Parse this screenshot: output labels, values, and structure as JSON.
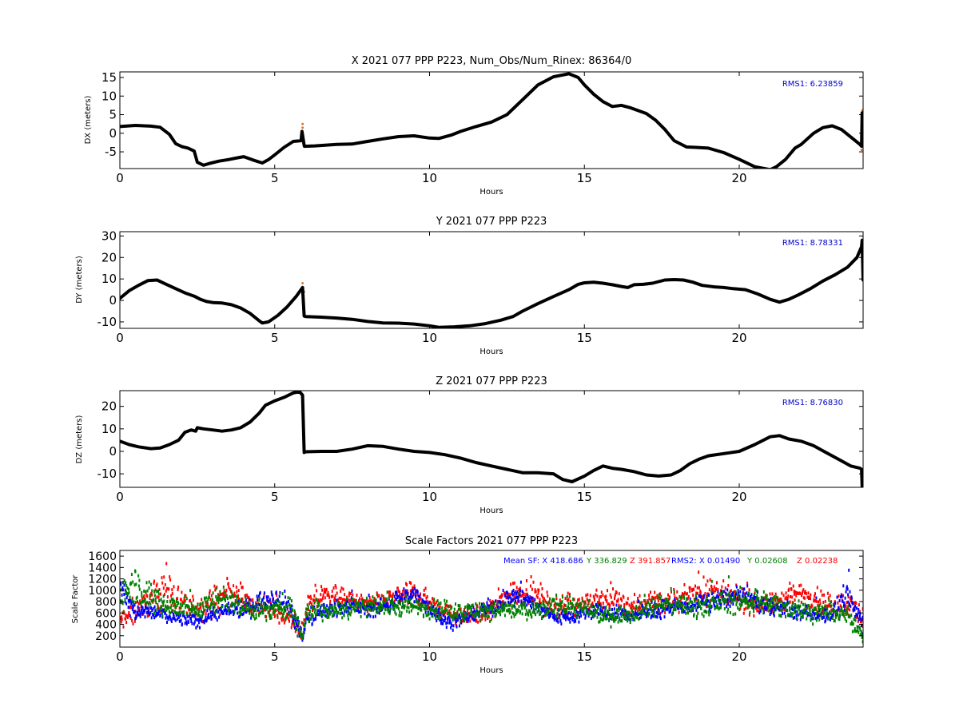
{
  "chart_data": [
    {
      "type": "line",
      "title": "X 2021 077 PPP  P223, Num_Obs/Num_Rinex: 86364/0",
      "xlabel": "Hours",
      "ylabel": "DX (meters)",
      "xlim": [
        0,
        24
      ],
      "ylim": [
        -9.5,
        16.5
      ],
      "xticks": [
        0,
        5,
        10,
        15,
        20
      ],
      "yticks": [
        -5,
        0,
        5,
        10,
        15
      ],
      "annotation": "RMS1:  6.23859",
      "annotation_color": "#0000cc",
      "line_color": "#000000",
      "series": [
        {
          "x": [
            0,
            0.5,
            1.0,
            1.3,
            1.6,
            1.8,
            2.0,
            2.2,
            2.4,
            2.5,
            2.7,
            2.9,
            3.2,
            3.5,
            3.8,
            4.0,
            4.3,
            4.6,
            4.8,
            5.0,
            5.3,
            5.6,
            5.85,
            5.88,
            5.95,
            5.96,
            6.3,
            7.0,
            7.5,
            8.0,
            8.5,
            9.0,
            9.5,
            10.0,
            10.3,
            10.7,
            11.0,
            11.5,
            12.0,
            12.5,
            13.0,
            13.5,
            14.0,
            14.5,
            14.8,
            15.0,
            15.3,
            15.6,
            15.9,
            16.2,
            16.5,
            17.0,
            17.3,
            17.6,
            17.9,
            18.3,
            18.6,
            19.0,
            19.5,
            20.0,
            20.5,
            21.0,
            21.2,
            21.5,
            21.8,
            22.0,
            22.4,
            22.7,
            23.0,
            23.3,
            23.6,
            23.9,
            23.95,
            23.97,
            24.0
          ],
          "y": [
            1.8,
            2.1,
            1.9,
            1.6,
            -0.3,
            -2.8,
            -3.6,
            -4.0,
            -4.8,
            -7.8,
            -8.6,
            -8.1,
            -7.5,
            -7.1,
            -6.6,
            -6.3,
            -7.2,
            -8.0,
            -7.1,
            -5.8,
            -3.8,
            -2.2,
            -2.0,
            0.5,
            -3.3,
            -3.5,
            -3.4,
            -3.0,
            -2.9,
            -2.2,
            -1.5,
            -0.9,
            -0.7,
            -1.3,
            -1.4,
            -0.5,
            0.5,
            1.8,
            3.0,
            5.0,
            9.0,
            13.0,
            15.2,
            16.0,
            15.0,
            13.0,
            10.5,
            8.5,
            7.2,
            7.5,
            6.8,
            5.3,
            3.5,
            1.0,
            -2.0,
            -3.7,
            -3.8,
            -4.0,
            -5.2,
            -7.0,
            -9.0,
            -9.8,
            -9.0,
            -7.0,
            -4.0,
            -3.0,
            0.0,
            1.5,
            2.0,
            1.0,
            -1.0,
            -3.0,
            -3.5,
            5.5,
            5.5
          ],
          "outliers": [
            [
              5.9,
              2.5
            ],
            [
              5.9,
              1.5
            ],
            [
              5.9,
              -1.0
            ],
            [
              23.95,
              -4.5
            ],
            [
              23.98,
              6.2
            ]
          ]
        }
      ]
    },
    {
      "type": "line",
      "title": "Y 2021 077 PPP  P223",
      "xlabel": "Hours",
      "ylabel": "DY (meters)",
      "xlim": [
        0,
        24
      ],
      "ylim": [
        -13,
        32
      ],
      "xticks": [
        0,
        5,
        10,
        15,
        20
      ],
      "yticks": [
        -10,
        0,
        10,
        20,
        30
      ],
      "annotation": "RMS1:  8.78331",
      "annotation_color": "#0000cc",
      "line_color": "#000000",
      "series": [
        {
          "x": [
            0,
            0.3,
            0.6,
            0.9,
            1.2,
            1.5,
            1.8,
            2.1,
            2.4,
            2.6,
            2.8,
            3.0,
            3.3,
            3.6,
            3.9,
            4.2,
            4.5,
            4.6,
            4.8,
            5.1,
            5.4,
            5.7,
            5.9,
            5.95,
            6.0,
            6.5,
            7.0,
            7.5,
            8.0,
            8.5,
            9.0,
            9.5,
            10.0,
            10.3,
            10.8,
            11.3,
            11.8,
            12.3,
            12.7,
            13.0,
            13.5,
            14.0,
            14.5,
            14.8,
            15.0,
            15.3,
            15.6,
            15.9,
            16.2,
            16.4,
            16.6,
            16.9,
            17.2,
            17.6,
            17.9,
            18.2,
            18.5,
            18.8,
            19.2,
            19.5,
            19.8,
            20.2,
            20.6,
            21.0,
            21.3,
            21.6,
            21.9,
            22.3,
            22.7,
            23.1,
            23.5,
            23.8,
            23.95,
            23.97,
            24.0
          ],
          "y": [
            1.0,
            4.5,
            7.0,
            9.2,
            9.5,
            7.5,
            5.5,
            3.5,
            2.0,
            0.5,
            -0.5,
            -1.0,
            -1.2,
            -2.0,
            -3.5,
            -6.0,
            -9.5,
            -10.5,
            -10.0,
            -7.0,
            -3.0,
            2.0,
            6.0,
            -7.3,
            -7.5,
            -7.8,
            -8.2,
            -8.8,
            -9.8,
            -10.5,
            -10.6,
            -11.0,
            -11.8,
            -12.5,
            -12.3,
            -11.8,
            -10.8,
            -9.2,
            -7.5,
            -5.0,
            -1.5,
            1.8,
            5.0,
            7.5,
            8.2,
            8.5,
            8.0,
            7.3,
            6.5,
            6.0,
            7.3,
            7.5,
            8.0,
            9.5,
            9.7,
            9.5,
            8.5,
            7.0,
            6.3,
            6.0,
            5.5,
            5.0,
            3.0,
            0.5,
            -0.8,
            0.5,
            2.5,
            5.5,
            9.0,
            12.0,
            15.5,
            20.0,
            25.0,
            28.0,
            9.5
          ],
          "outliers": [
            [
              5.9,
              8.0
            ],
            [
              5.95,
              4.0
            ],
            [
              23.97,
              24.0
            ],
            [
              23.98,
              15.0
            ]
          ]
        }
      ]
    },
    {
      "type": "line",
      "title": "Z 2021 077 PPP  P223",
      "xlabel": "Hours",
      "ylabel": "DZ (meters)",
      "xlim": [
        0,
        24
      ],
      "ylim": [
        -16,
        27
      ],
      "xticks": [
        0,
        5,
        10,
        15,
        20
      ],
      "yticks": [
        -10,
        0,
        10,
        20
      ],
      "annotation": "RMS1:  8.76830",
      "annotation_color": "#0000cc",
      "line_color": "#000000",
      "series": [
        {
          "x": [
            0,
            0.3,
            0.6,
            1.0,
            1.3,
            1.6,
            1.9,
            2.1,
            2.3,
            2.45,
            2.5,
            2.7,
            3.0,
            3.3,
            3.6,
            3.9,
            4.2,
            4.5,
            4.7,
            5.0,
            5.3,
            5.6,
            5.8,
            5.9,
            5.95,
            6.0,
            6.5,
            7.0,
            7.5,
            8.0,
            8.5,
            9.0,
            9.5,
            10.0,
            10.5,
            11.0,
            11.5,
            12.0,
            12.5,
            13.0,
            13.5,
            14.0,
            14.3,
            14.6,
            15.0,
            15.3,
            15.6,
            15.9,
            16.2,
            16.6,
            17.0,
            17.4,
            17.8,
            18.1,
            18.4,
            18.7,
            19.0,
            19.5,
            20.0,
            20.5,
            21.0,
            21.3,
            21.6,
            22.0,
            22.4,
            22.8,
            23.2,
            23.6,
            23.9,
            23.95,
            23.97,
            24.0
          ],
          "y": [
            4.5,
            3.0,
            2.0,
            1.2,
            1.5,
            3.0,
            5.0,
            8.5,
            9.5,
            9.0,
            10.5,
            10.0,
            9.5,
            9.0,
            9.5,
            10.5,
            13.0,
            17.0,
            20.5,
            22.5,
            24.0,
            26.0,
            26.5,
            25.0,
            -0.5,
            -0.2,
            0.0,
            0.0,
            1.0,
            2.5,
            2.2,
            1.0,
            0.0,
            -0.5,
            -1.5,
            -3.0,
            -5.0,
            -6.5,
            -8.0,
            -9.5,
            -9.5,
            -10.0,
            -12.5,
            -13.5,
            -11.0,
            -8.5,
            -6.5,
            -7.5,
            -8.0,
            -9.0,
            -10.5,
            -11.0,
            -10.5,
            -8.5,
            -5.5,
            -3.5,
            -2.0,
            -1.0,
            0.0,
            3.0,
            6.5,
            7.0,
            5.5,
            4.5,
            2.5,
            -0.5,
            -3.5,
            -6.5,
            -7.5,
            -8.0,
            -15.5,
            -15.0
          ],
          "outliers": [
            [
              5.9,
              20.0
            ],
            [
              5.92,
              12.0
            ],
            [
              5.95,
              5.0
            ],
            [
              23.96,
              -11.0
            ]
          ]
        }
      ]
    },
    {
      "type": "scatter",
      "title": "Scale Factors 2021 077 PPP  P223",
      "xlabel": "Hours",
      "ylabel": "Scale Factor",
      "xlim": [
        0,
        24
      ],
      "ylim": [
        0,
        1700
      ],
      "xticks": [
        0,
        5,
        10,
        15,
        20
      ],
      "yticks": [
        200,
        400,
        600,
        800,
        1000,
        1200,
        1400,
        1600
      ],
      "legend_text": [
        {
          "text": "Mean SF: X 418.686",
          "color": "#0000ff"
        },
        {
          "text": "Y 336.829",
          "color": "#008000"
        },
        {
          "text": "Z 391.857",
          "color": "#ff0000"
        },
        {
          "text": "RMS2: X  0.01490",
          "color": "#0000ff"
        },
        {
          "text": "Y  0.02608",
          "color": "#008000"
        },
        {
          "text": "Z  0.02238",
          "color": "#ff0000"
        }
      ],
      "series": [
        {
          "name": "Z",
          "color": "#ff0000",
          "x": [
            0,
            0.5,
            1.0,
            1.5,
            2.0,
            2.5,
            3.0,
            3.5,
            4.0,
            4.5,
            5.0,
            5.5,
            5.9,
            6.0,
            6.5,
            7.0,
            7.5,
            8.0,
            8.5,
            9.0,
            9.5,
            10.0,
            10.5,
            11.0,
            11.5,
            12.0,
            12.5,
            13.0,
            13.5,
            14.0,
            14.5,
            15.0,
            15.5,
            16.0,
            16.5,
            17.0,
            17.5,
            18.0,
            18.5,
            19.0,
            19.5,
            20.0,
            20.5,
            21.0,
            21.5,
            22.0,
            22.5,
            23.0,
            23.5,
            24.0
          ],
          "center": [
            450,
            650,
            850,
            1050,
            700,
            650,
            750,
            950,
            850,
            700,
            600,
            500,
            200,
            650,
            880,
            900,
            800,
            750,
            800,
            870,
            950,
            800,
            620,
            520,
            560,
            650,
            900,
            1000,
            880,
            700,
            720,
            750,
            800,
            850,
            700,
            800,
            780,
            800,
            950,
            1000,
            900,
            850,
            750,
            750,
            850,
            950,
            850,
            700,
            800,
            500
          ],
          "spread": [
            120,
            200,
            220,
            260,
            180,
            160,
            200,
            200,
            180,
            160,
            150,
            150,
            150,
            150,
            150,
            150,
            130,
            120,
            140,
            150,
            160,
            160,
            130,
            120,
            130,
            150,
            200,
            220,
            200,
            160,
            140,
            150,
            170,
            170,
            150,
            160,
            150,
            150,
            190,
            210,
            180,
            170,
            150,
            150,
            170,
            200,
            180,
            150,
            170,
            180
          ]
        },
        {
          "name": "X",
          "color": "#0000ff",
          "x": [
            0,
            0.5,
            1.0,
            1.5,
            2.0,
            2.5,
            3.0,
            3.5,
            4.0,
            4.5,
            5.0,
            5.5,
            5.9,
            6.0,
            6.5,
            7.0,
            7.5,
            8.0,
            8.5,
            9.0,
            9.5,
            10.0,
            10.5,
            11.0,
            11.5,
            12.0,
            12.5,
            13.0,
            13.5,
            14.0,
            14.5,
            15.0,
            15.5,
            16.0,
            16.5,
            17.0,
            17.5,
            18.0,
            18.5,
            19.0,
            19.5,
            20.0,
            20.5,
            21.0,
            21.5,
            22.0,
            22.5,
            23.0,
            23.5,
            24.0
          ],
          "center": [
            1100,
            600,
            620,
            560,
            500,
            450,
            600,
            620,
            650,
            800,
            900,
            700,
            150,
            450,
            620,
            700,
            720,
            650,
            700,
            850,
            900,
            700,
            450,
            480,
            600,
            700,
            850,
            900,
            700,
            550,
            520,
            600,
            620,
            600,
            550,
            600,
            650,
            700,
            750,
            780,
            850,
            900,
            800,
            700,
            650,
            600,
            580,
            560,
            900,
            400
          ],
          "spread": [
            200,
            120,
            110,
            100,
            100,
            100,
            110,
            110,
            120,
            140,
            150,
            140,
            120,
            110,
            110,
            110,
            110,
            100,
            110,
            130,
            140,
            120,
            100,
            100,
            110,
            120,
            140,
            150,
            120,
            100,
            100,
            110,
            110,
            100,
            100,
            110,
            110,
            110,
            120,
            120,
            130,
            140,
            130,
            110,
            100,
            100,
            100,
            100,
            220,
            160
          ]
        },
        {
          "name": "Y",
          "color": "#008000",
          "x": [
            0,
            0.5,
            1.0,
            1.5,
            2.0,
            2.5,
            3.0,
            3.5,
            4.0,
            4.5,
            5.0,
            5.5,
            5.9,
            6.0,
            6.5,
            7.0,
            7.5,
            8.0,
            8.5,
            9.0,
            9.5,
            10.0,
            10.5,
            11.0,
            11.5,
            12.0,
            12.5,
            13.0,
            13.5,
            14.0,
            14.5,
            15.0,
            15.5,
            16.0,
            16.5,
            17.0,
            17.5,
            18.0,
            18.5,
            19.0,
            19.5,
            20.0,
            20.5,
            21.0,
            21.5,
            22.0,
            22.5,
            23.0,
            23.5,
            24.0
          ],
          "center": [
            900,
            1100,
            850,
            750,
            700,
            650,
            800,
            850,
            700,
            650,
            650,
            700,
            250,
            600,
            650,
            650,
            700,
            720,
            720,
            700,
            700,
            700,
            650,
            620,
            640,
            650,
            650,
            650,
            650,
            700,
            750,
            650,
            550,
            550,
            600,
            700,
            750,
            750,
            720,
            750,
            800,
            800,
            820,
            750,
            700,
            650,
            620,
            600,
            550,
            250
          ],
          "spread": [
            250,
            280,
            200,
            170,
            160,
            150,
            180,
            190,
            160,
            150,
            150,
            150,
            150,
            140,
            140,
            140,
            140,
            140,
            140,
            140,
            140,
            140,
            130,
            130,
            130,
            130,
            130,
            140,
            140,
            150,
            160,
            140,
            120,
            120,
            130,
            150,
            160,
            160,
            150,
            160,
            170,
            170,
            170,
            160,
            150,
            140,
            130,
            130,
            120,
            150
          ]
        }
      ]
    }
  ]
}
